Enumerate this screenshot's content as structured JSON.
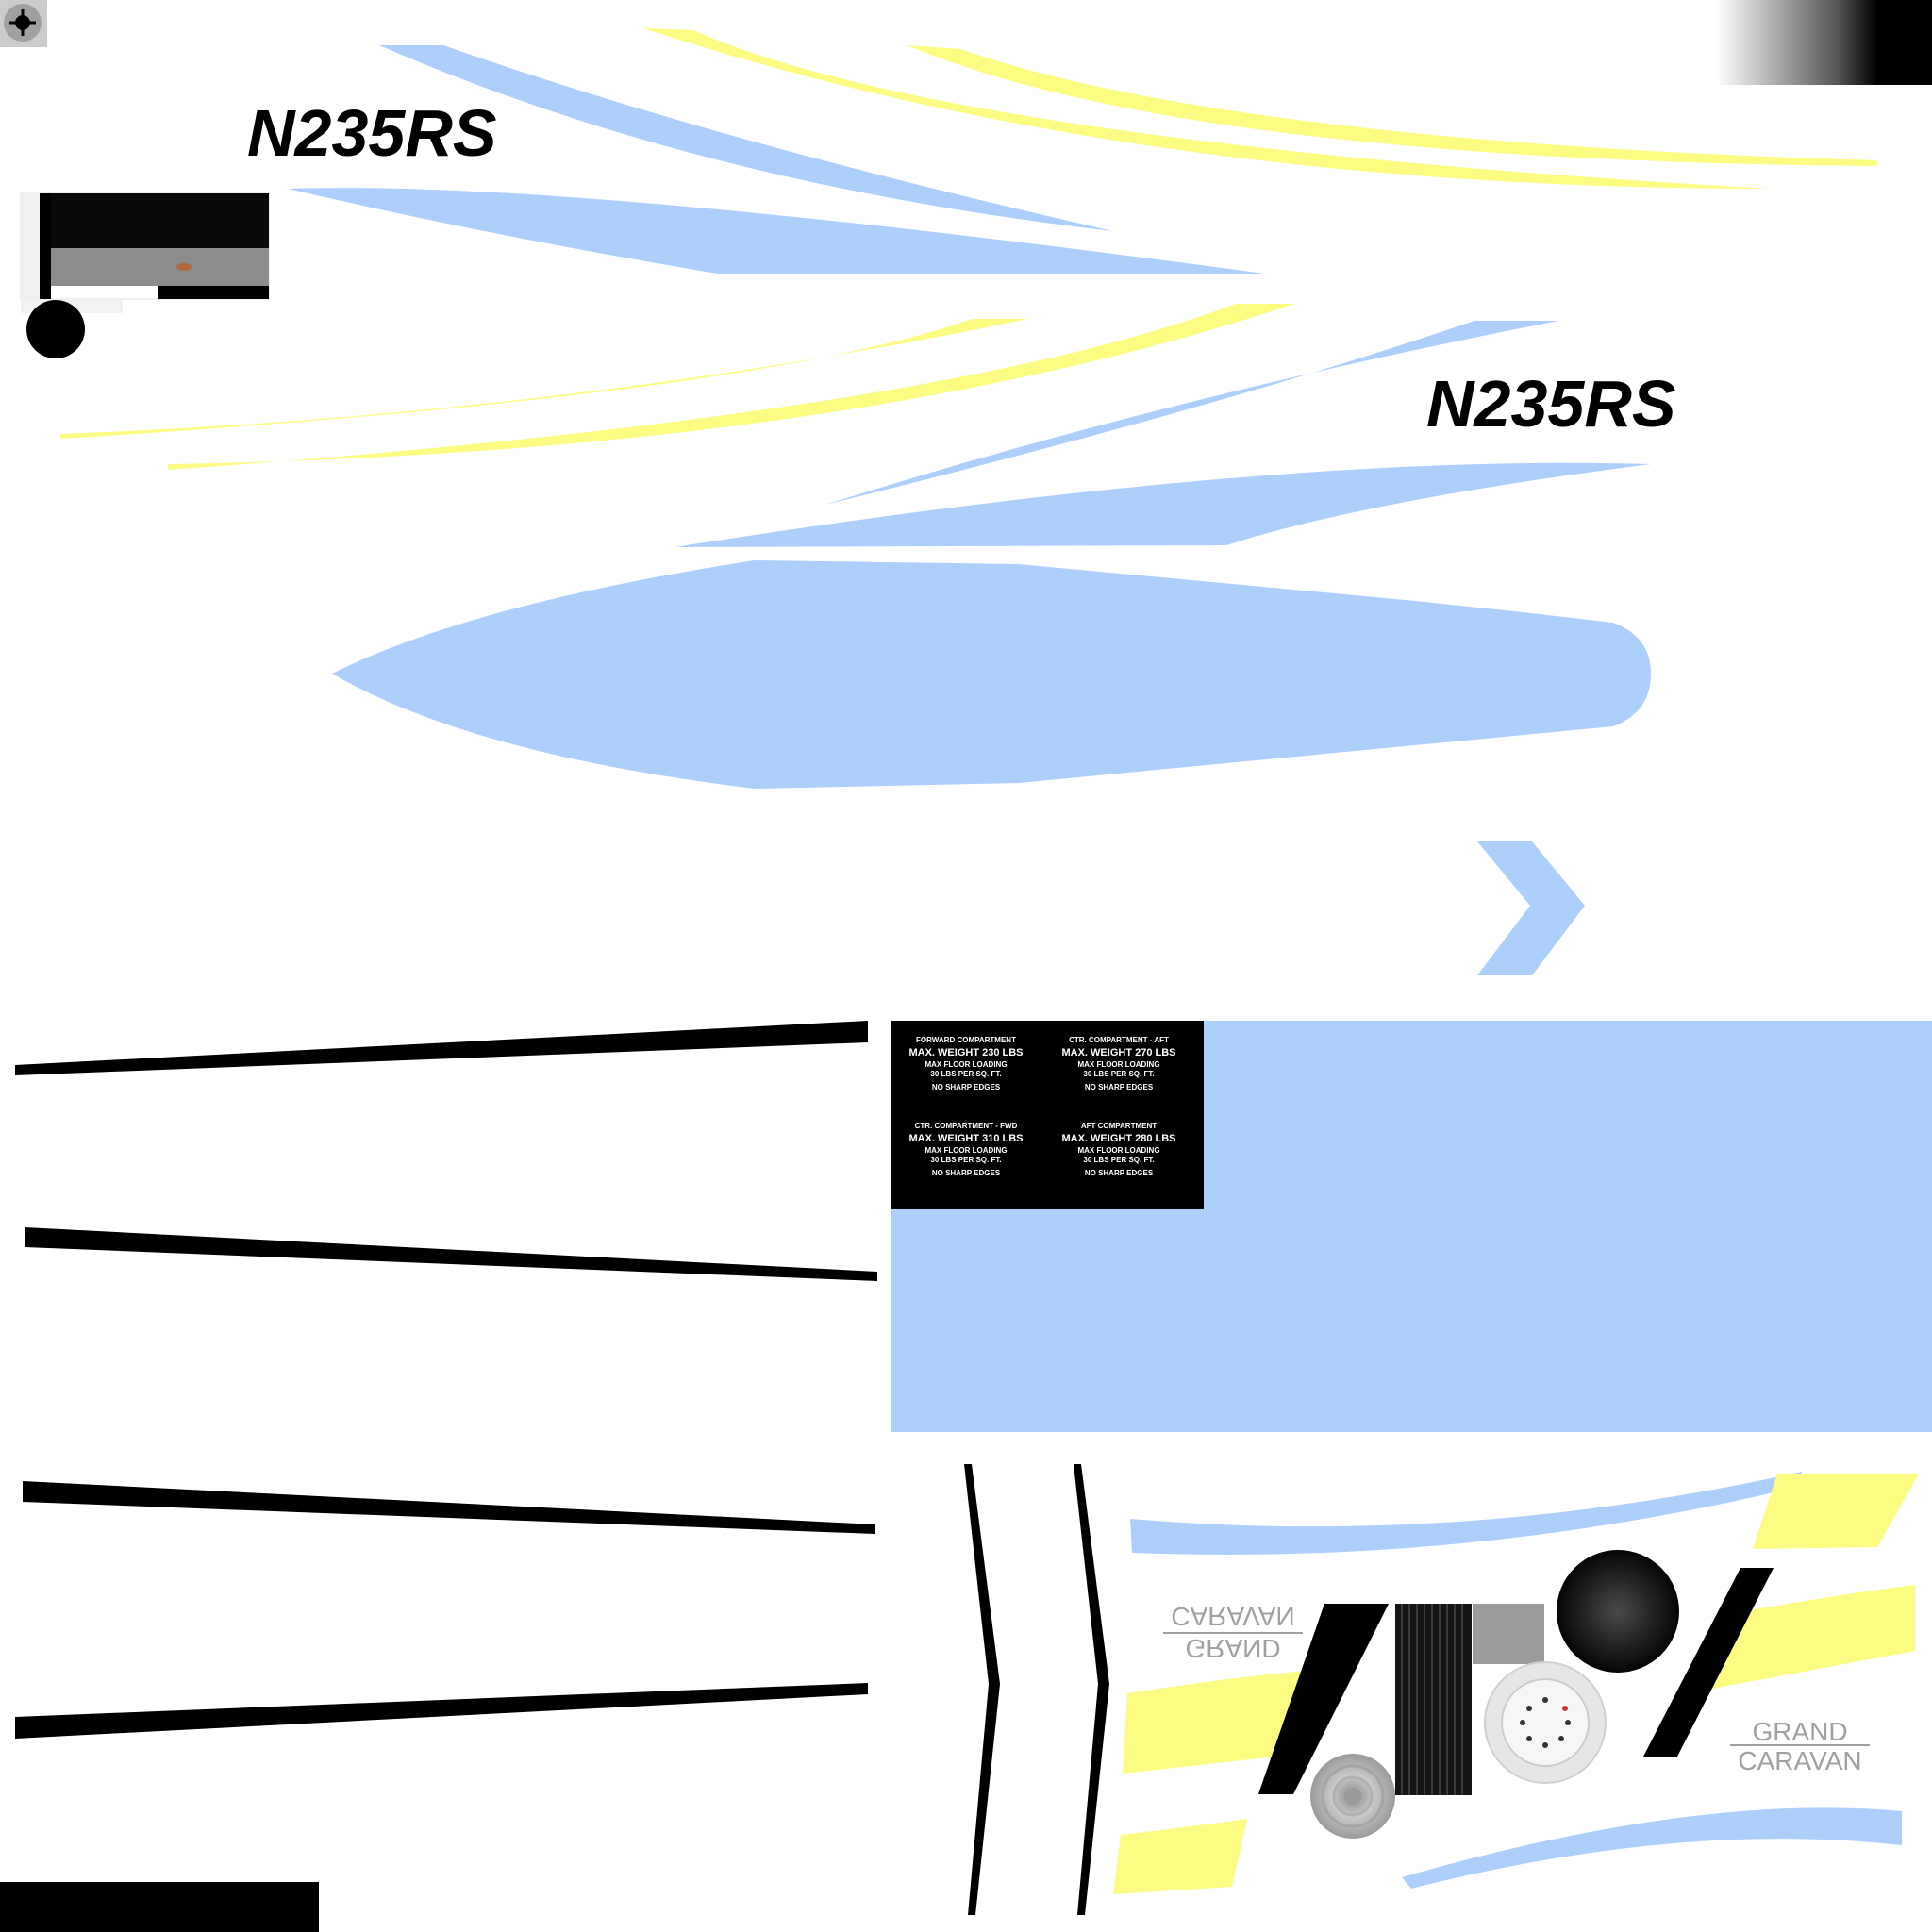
{
  "colors": {
    "blue": "#acd0fb",
    "yellow": "#fcfc82",
    "black": "#000000",
    "grey": "#9c9c9c",
    "white": "#ffffff"
  },
  "registration": {
    "top": "N235RS",
    "right": "N235RS"
  },
  "placard": {
    "forward": {
      "title": "FORWARD COMPARTMENT",
      "weight": "MAX. WEIGHT 230 LBS",
      "floor": "MAX FLOOR LOADING",
      "psf": "30 LBS PER SQ. FT.",
      "edges": "NO SHARP EDGES"
    },
    "ctr_aft": {
      "title": "CTR. COMPARTMENT - AFT",
      "weight": "MAX. WEIGHT 270 LBS",
      "floor": "MAX FLOOR LOADING",
      "psf": "30 LBS PER SQ. FT.",
      "edges": "NO SHARP EDGES"
    },
    "ctr_fwd": {
      "title": "CTR. COMPARTMENT - FWD",
      "weight": "MAX. WEIGHT 310 LBS",
      "floor": "MAX FLOOR LOADING",
      "psf": "30 LBS PER SQ. FT.",
      "edges": "NO SHARP EDGES"
    },
    "aft": {
      "title": "AFT COMPARTMENT",
      "weight": "MAX. WEIGHT 280 LBS",
      "floor": "MAX FLOOR LOADING",
      "psf": "30 LBS PER SQ. FT.",
      "edges": "NO SHARP EDGES"
    }
  },
  "model_badge": {
    "line1": "GRAND",
    "line2": "CARAVAN"
  }
}
